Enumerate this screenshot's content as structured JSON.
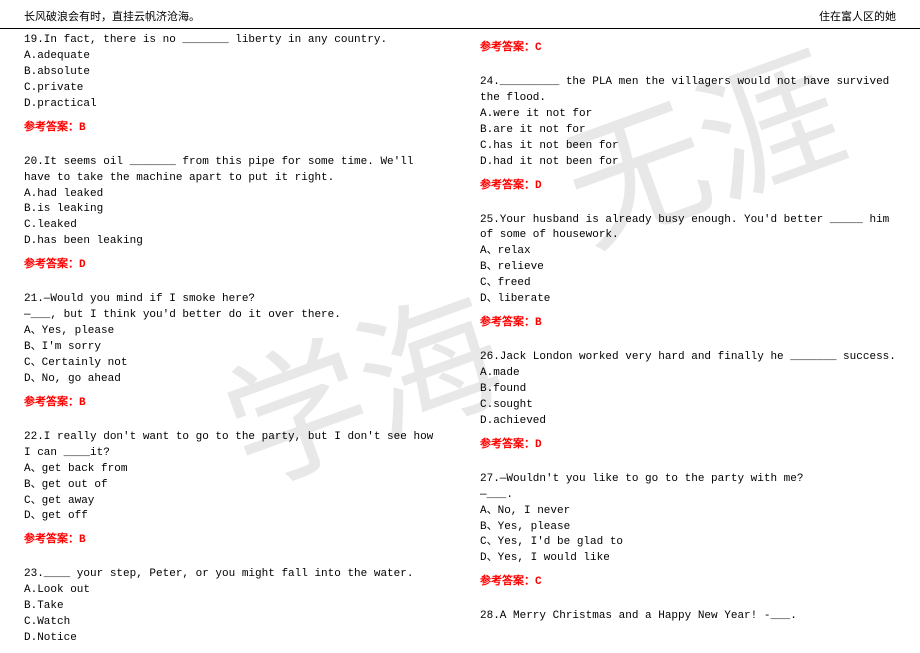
{
  "header": {
    "left": "长风破浪会有时，直挂云帆济沧海。",
    "right": "住在富人区的她"
  },
  "watermark": {
    "wm1": "学海",
    "wm2": "无涯"
  },
  "answer_label_prefix": "参考答案：",
  "left_column": [
    {
      "q": "19.In fact, there is no _______ liberty in any country.",
      "opts": [
        "A.adequate",
        "B.absolute",
        "C.private",
        "D.practical"
      ],
      "ans": "B"
    },
    {
      "q": "20.It seems oil _______ from this pipe for some time. We'll have to take the machine apart to put it right.",
      "opts": [
        "A.had leaked",
        "B.is leaking",
        "C.leaked",
        "D.has been leaking"
      ],
      "ans": "D"
    },
    {
      "q": "21.—Would you mind if I smoke here?\n—___, but I think you'd better do it over there.",
      "opts": [
        "A、Yes, please",
        "B、I'm sorry",
        "C、Certainly not",
        "D、No, go ahead"
      ],
      "ans": "B"
    },
    {
      "q": "22.I really don't want to go to the party, but I don't see how I can ____it?",
      "opts": [
        "A、get back from",
        "B、get out of",
        "C、get away",
        "D、get off"
      ],
      "ans": "B"
    },
    {
      "q": "23.____ your step, Peter, or you might fall into the water.",
      "opts": [
        "A.Look out",
        "B.Take",
        "C.Watch",
        "D.Notice"
      ],
      "ans": null
    }
  ],
  "right_column": [
    {
      "q": null,
      "opts": [],
      "ans": "C"
    },
    {
      "q": "24._________ the PLA men the villagers would not have survived the flood.",
      "opts": [
        "A.were it not for",
        "B.are it not for",
        "C.has it not been for",
        "D.had it not been for"
      ],
      "ans": "D"
    },
    {
      "q": "25.Your husband is already busy enough. You'd better _____ him of some of housework.",
      "opts": [
        "A、relax",
        "B、relieve",
        "C、freed",
        "D、liberate"
      ],
      "ans": "B"
    },
    {
      "q": "26.Jack London worked very hard and finally he _______ success.",
      "opts": [
        "A.made",
        "B.found",
        "C.sought",
        "D.achieved"
      ],
      "ans": "D"
    },
    {
      "q": "27.—Wouldn't you like to go to the party with me?\n—___.",
      "opts": [
        "A、No, I never",
        "B、Yes, please",
        "C、Yes, I'd be glad to",
        "D、Yes, I would like"
      ],
      "ans": "C"
    },
    {
      "q": "28.A Merry Christmas and a Happy New Year! -___.",
      "opts": [],
      "ans": null
    }
  ]
}
